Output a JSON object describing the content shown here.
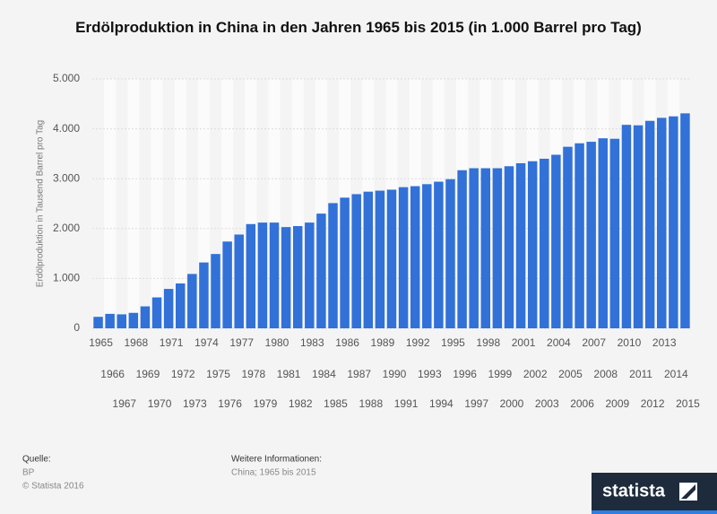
{
  "chart_data": {
    "type": "bar",
    "title": "Erdölproduktion in China in den Jahren 1965 bis 2015 (in 1.000 Barrel pro Tag)",
    "y_label": "Erdölproduktion in Tausend Barrel pro Tag",
    "categories": [
      "1965",
      "1966",
      "1967",
      "1968",
      "1969",
      "1970",
      "1971",
      "1972",
      "1973",
      "1974",
      "1975",
      "1976",
      "1977",
      "1978",
      "1979",
      "1980",
      "1981",
      "1982",
      "1983",
      "1984",
      "1985",
      "1986",
      "1987",
      "1988",
      "1989",
      "1990",
      "1991",
      "1992",
      "1993",
      "1994",
      "1995",
      "1996",
      "1997",
      "1998",
      "1999",
      "2000",
      "2001",
      "2002",
      "2003",
      "2004",
      "2005",
      "2006",
      "2007",
      "2008",
      "2009",
      "2010",
      "2011",
      "2012",
      "2013",
      "2014",
      "2015"
    ],
    "values": [
      230,
      290,
      280,
      310,
      440,
      620,
      790,
      900,
      1090,
      1320,
      1490,
      1740,
      1880,
      2090,
      2120,
      2120,
      2030,
      2050,
      2120,
      2300,
      2510,
      2620,
      2690,
      2740,
      2760,
      2780,
      2830,
      2850,
      2890,
      2940,
      2990,
      3170,
      3210,
      3210,
      3210,
      3250,
      3310,
      3350,
      3400,
      3480,
      3640,
      3710,
      3740,
      3810,
      3800,
      4080,
      4070,
      4160,
      4220,
      4250,
      4310
    ],
    "color": "#3171d8",
    "ylim": [
      0,
      5000
    ],
    "yticks": [
      0,
      {
        "value": 1000,
        "label": "1.000"
      },
      {
        "value": 2000,
        "label": "2.000"
      },
      {
        "value": 3000,
        "label": "3.000"
      },
      {
        "value": 4000,
        "label": "4.000"
      },
      {
        "value": 5000,
        "label": "5.000"
      }
    ],
    "grid": true
  },
  "footer": {
    "source_label": "Quelle:",
    "source": "BP",
    "copyright": "© Statista 2016",
    "info_label": "Weitere Informationen:",
    "info": "China; 1965 bis 2015",
    "logo": "statista"
  }
}
